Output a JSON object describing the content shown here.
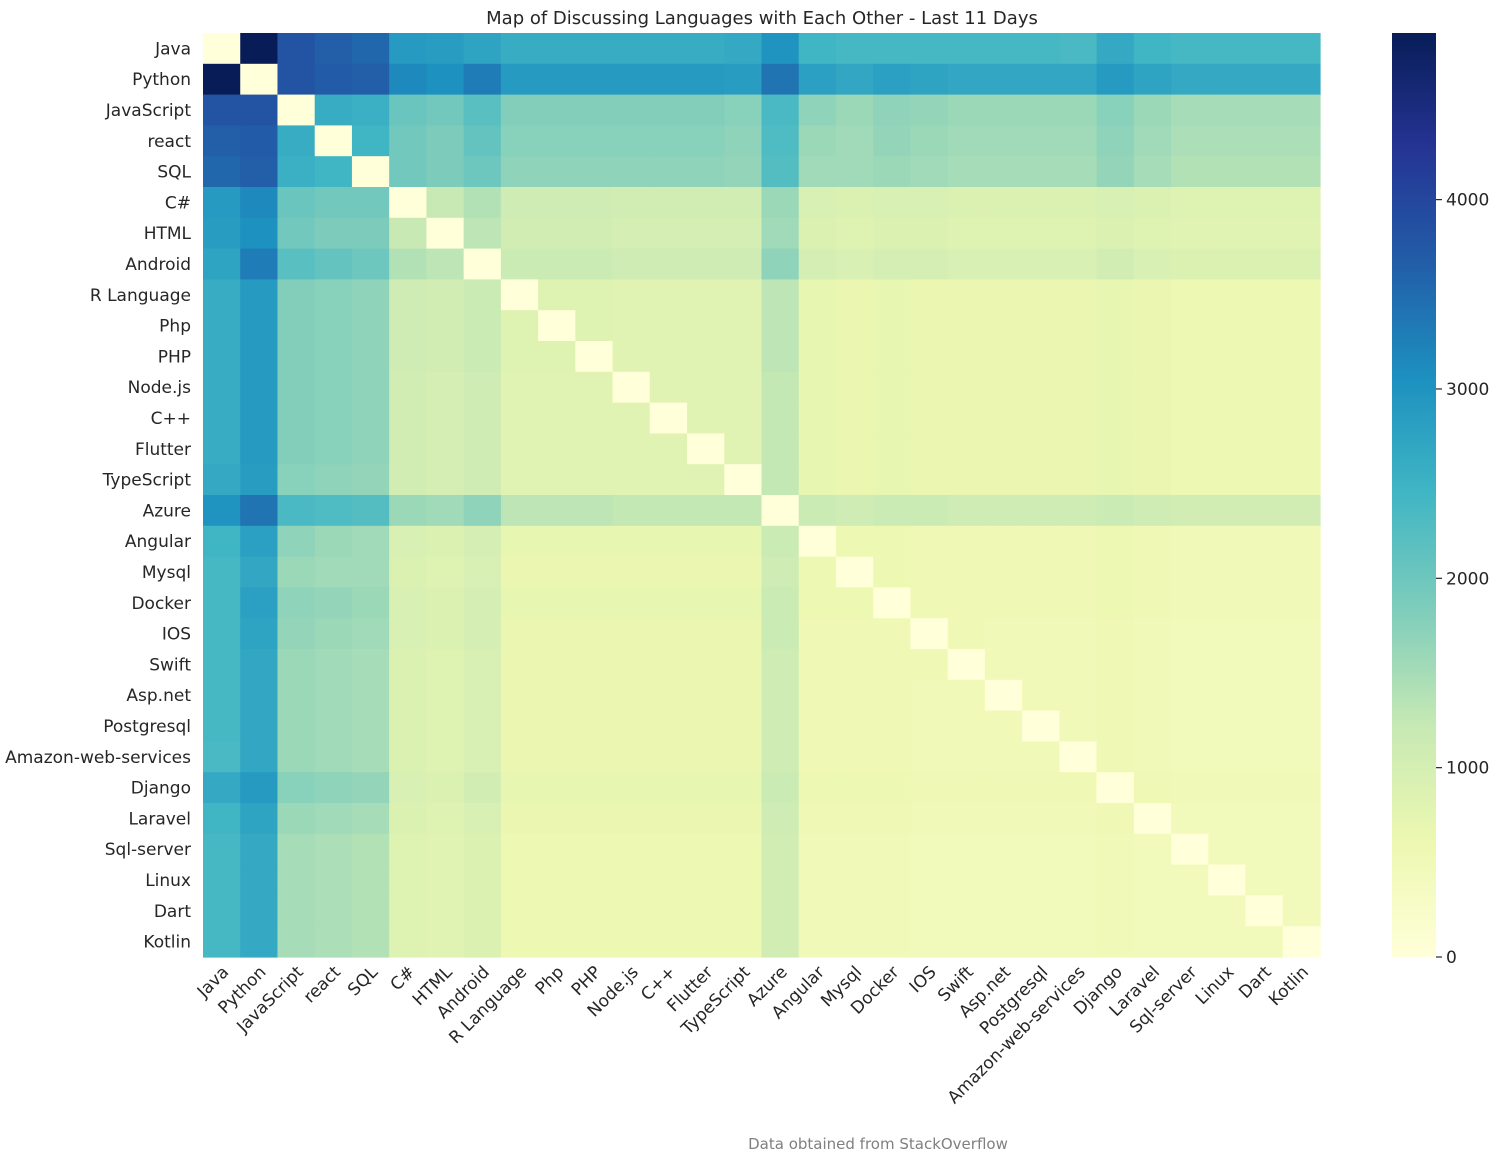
{
  "chart_data": {
    "type": "heatmap",
    "title": "Map of Discussing Languages with Each Other - Last 11 Days",
    "footnote": "Data obtained from StackOverflow",
    "labels": [
      "Java",
      "Python",
      "JavaScript",
      "react",
      "SQL",
      "C#",
      "HTML",
      "Android",
      "R Language",
      "Php",
      "PHP",
      "Node.js",
      "C++",
      "Flutter",
      "TypeScript",
      "Azure",
      "Angular",
      "Mysql",
      "Docker",
      "IOS",
      "Swift",
      "Asp.net",
      "Postgresql",
      "Amazon-web-services",
      "Django",
      "Laravel",
      "Sql-server",
      "Linux",
      "Dart",
      "Kotlin"
    ],
    "colorscale": "YlGnBu",
    "colorbar": {
      "range": [
        0,
        4880
      ],
      "ticks": [
        0,
        1000,
        2000,
        3000,
        4000
      ]
    },
    "values": [
      [
        0,
        4880,
        3800,
        3650,
        3550,
        2900,
        2850,
        2750,
        2600,
        2600,
        2600,
        2600,
        2600,
        2600,
        2650,
        3000,
        2450,
        2400,
        2400,
        2400,
        2400,
        2400,
        2400,
        2350,
        2650,
        2450,
        2400,
        2400,
        2400,
        2400
      ],
      [
        4880,
        0,
        3800,
        3700,
        3650,
        3150,
        3050,
        3300,
        2900,
        2900,
        2900,
        2900,
        2900,
        2900,
        2850,
        3400,
        2800,
        2700,
        2800,
        2750,
        2700,
        2700,
        2700,
        2700,
        2900,
        2750,
        2650,
        2650,
        2650,
        2650
      ],
      [
        3800,
        3800,
        0,
        2600,
        2550,
        2050,
        1950,
        2200,
        1800,
        1800,
        1800,
        1800,
        1800,
        1800,
        1750,
        2350,
        1700,
        1600,
        1700,
        1650,
        1600,
        1600,
        1600,
        1600,
        1750,
        1600,
        1500,
        1500,
        1500,
        1500
      ],
      [
        3650,
        3700,
        2600,
        0,
        2450,
        1950,
        1850,
        2100,
        1750,
        1750,
        1750,
        1750,
        1750,
        1750,
        1700,
        2300,
        1600,
        1550,
        1650,
        1600,
        1550,
        1550,
        1550,
        1550,
        1700,
        1550,
        1450,
        1450,
        1450,
        1450
      ],
      [
        3550,
        3650,
        2550,
        2450,
        0,
        1950,
        1850,
        2000,
        1700,
        1700,
        1700,
        1700,
        1700,
        1700,
        1650,
        2250,
        1550,
        1550,
        1600,
        1550,
        1500,
        1500,
        1500,
        1500,
        1650,
        1500,
        1400,
        1400,
        1400,
        1400
      ],
      [
        2900,
        3150,
        2050,
        1950,
        1950,
        0,
        1200,
        1400,
        1100,
        1100,
        1100,
        1050,
        1050,
        1050,
        1050,
        1600,
        950,
        900,
        950,
        950,
        900,
        900,
        900,
        900,
        950,
        900,
        850,
        850,
        850,
        850
      ],
      [
        2850,
        3050,
        1950,
        1850,
        1850,
        1200,
        0,
        1300,
        1050,
        1050,
        1050,
        1000,
        1000,
        1000,
        1000,
        1550,
        900,
        850,
        900,
        900,
        850,
        850,
        850,
        850,
        900,
        850,
        800,
        800,
        800,
        800
      ],
      [
        2750,
        3300,
        2200,
        2100,
        2000,
        1400,
        1300,
        0,
        1150,
        1150,
        1150,
        1100,
        1100,
        1100,
        1100,
        1700,
        1000,
        950,
        1000,
        1000,
        950,
        950,
        950,
        950,
        1050,
        950,
        900,
        900,
        900,
        900
      ],
      [
        2600,
        2900,
        1800,
        1750,
        1700,
        1100,
        1050,
        1150,
        0,
        850,
        850,
        800,
        800,
        800,
        800,
        1300,
        700,
        650,
        700,
        650,
        650,
        650,
        650,
        650,
        700,
        650,
        600,
        600,
        600,
        600
      ],
      [
        2600,
        2900,
        1800,
        1750,
        1700,
        1100,
        1050,
        1150,
        850,
        0,
        850,
        800,
        800,
        800,
        800,
        1300,
        700,
        650,
        700,
        650,
        650,
        650,
        650,
        650,
        700,
        650,
        600,
        600,
        600,
        600
      ],
      [
        2600,
        2900,
        1800,
        1750,
        1700,
        1100,
        1050,
        1150,
        850,
        850,
        0,
        800,
        800,
        800,
        800,
        1300,
        700,
        650,
        700,
        650,
        650,
        650,
        650,
        650,
        700,
        650,
        600,
        600,
        600,
        600
      ],
      [
        2600,
        2900,
        1800,
        1750,
        1700,
        1050,
        1000,
        1100,
        800,
        800,
        800,
        0,
        800,
        800,
        800,
        1250,
        700,
        650,
        700,
        650,
        650,
        650,
        650,
        650,
        700,
        650,
        600,
        600,
        600,
        600
      ],
      [
        2600,
        2900,
        1800,
        1750,
        1700,
        1050,
        1000,
        1100,
        800,
        800,
        800,
        800,
        0,
        800,
        800,
        1250,
        700,
        650,
        700,
        650,
        650,
        650,
        650,
        650,
        700,
        650,
        600,
        600,
        600,
        600
      ],
      [
        2600,
        2900,
        1800,
        1750,
        1700,
        1050,
        1000,
        1100,
        800,
        800,
        800,
        800,
        800,
        0,
        800,
        1250,
        700,
        650,
        700,
        650,
        650,
        650,
        650,
        650,
        700,
        650,
        600,
        600,
        600,
        600
      ],
      [
        2650,
        2850,
        1750,
        1700,
        1650,
        1050,
        1000,
        1100,
        800,
        800,
        800,
        800,
        800,
        800,
        0,
        1250,
        700,
        650,
        700,
        650,
        650,
        650,
        650,
        650,
        700,
        650,
        600,
        600,
        600,
        600
      ],
      [
        3000,
        3400,
        2350,
        2300,
        2250,
        1600,
        1550,
        1700,
        1300,
        1300,
        1300,
        1250,
        1250,
        1250,
        1250,
        0,
        1150,
        1100,
        1150,
        1150,
        1100,
        1100,
        1100,
        1100,
        1150,
        1100,
        1050,
        1050,
        1050,
        1050
      ],
      [
        2450,
        2800,
        1700,
        1600,
        1550,
        950,
        900,
        1000,
        700,
        700,
        700,
        700,
        700,
        700,
        700,
        1150,
        0,
        600,
        600,
        550,
        550,
        550,
        550,
        550,
        600,
        550,
        500,
        500,
        500,
        500
      ],
      [
        2400,
        2700,
        1600,
        1550,
        1550,
        900,
        850,
        950,
        650,
        650,
        650,
        650,
        650,
        650,
        650,
        1100,
        600,
        0,
        600,
        550,
        550,
        550,
        550,
        550,
        600,
        550,
        500,
        500,
        500,
        500
      ],
      [
        2400,
        2800,
        1700,
        1650,
        1600,
        950,
        900,
        1000,
        700,
        700,
        700,
        700,
        700,
        700,
        700,
        1150,
        600,
        600,
        0,
        550,
        550,
        550,
        550,
        550,
        600,
        550,
        500,
        500,
        500,
        500
      ],
      [
        2400,
        2750,
        1650,
        1600,
        1550,
        950,
        900,
        1000,
        650,
        650,
        650,
        650,
        650,
        650,
        650,
        1150,
        550,
        550,
        550,
        0,
        550,
        500,
        500,
        500,
        550,
        500,
        450,
        450,
        450,
        450
      ],
      [
        2400,
        2700,
        1600,
        1550,
        1500,
        900,
        850,
        950,
        650,
        650,
        650,
        650,
        650,
        650,
        650,
        1100,
        550,
        550,
        550,
        550,
        0,
        500,
        500,
        500,
        550,
        500,
        450,
        450,
        450,
        450
      ],
      [
        2400,
        2700,
        1600,
        1550,
        1500,
        900,
        850,
        950,
        650,
        650,
        650,
        650,
        650,
        650,
        650,
        1100,
        550,
        550,
        550,
        500,
        500,
        0,
        500,
        500,
        550,
        500,
        450,
        450,
        450,
        450
      ],
      [
        2400,
        2700,
        1600,
        1550,
        1500,
        900,
        850,
        950,
        650,
        650,
        650,
        650,
        650,
        650,
        650,
        1100,
        550,
        550,
        550,
        500,
        500,
        500,
        0,
        500,
        550,
        500,
        450,
        450,
        450,
        450
      ],
      [
        2350,
        2700,
        1600,
        1550,
        1500,
        900,
        850,
        950,
        650,
        650,
        650,
        650,
        650,
        650,
        650,
        1100,
        550,
        550,
        550,
        500,
        500,
        500,
        500,
        0,
        550,
        500,
        450,
        450,
        450,
        450
      ],
      [
        2650,
        2900,
        1750,
        1700,
        1650,
        950,
        900,
        1050,
        700,
        700,
        700,
        700,
        700,
        700,
        700,
        1150,
        600,
        600,
        600,
        550,
        550,
        550,
        550,
        550,
        0,
        550,
        500,
        500,
        500,
        500
      ],
      [
        2450,
        2750,
        1600,
        1550,
        1500,
        900,
        850,
        950,
        650,
        650,
        650,
        650,
        650,
        650,
        650,
        1100,
        550,
        550,
        550,
        500,
        500,
        500,
        500,
        500,
        550,
        0,
        450,
        450,
        450,
        450
      ],
      [
        2400,
        2650,
        1500,
        1450,
        1400,
        850,
        800,
        900,
        600,
        600,
        600,
        600,
        600,
        600,
        600,
        1050,
        500,
        500,
        500,
        450,
        450,
        450,
        450,
        450,
        500,
        450,
        0,
        450,
        450,
        450
      ],
      [
        2400,
        2650,
        1500,
        1450,
        1400,
        850,
        800,
        900,
        600,
        600,
        600,
        600,
        600,
        600,
        600,
        1050,
        500,
        500,
        500,
        450,
        450,
        450,
        450,
        450,
        500,
        450,
        450,
        0,
        450,
        450
      ],
      [
        2400,
        2650,
        1500,
        1450,
        1400,
        850,
        800,
        900,
        600,
        600,
        600,
        600,
        600,
        600,
        600,
        1050,
        500,
        500,
        500,
        450,
        450,
        450,
        450,
        450,
        500,
        450,
        450,
        450,
        0,
        450
      ],
      [
        2400,
        2650,
        1500,
        1450,
        1400,
        850,
        800,
        900,
        600,
        600,
        600,
        600,
        600,
        600,
        600,
        1050,
        500,
        500,
        500,
        450,
        450,
        450,
        450,
        450,
        500,
        450,
        450,
        450,
        450,
        0
      ]
    ]
  }
}
